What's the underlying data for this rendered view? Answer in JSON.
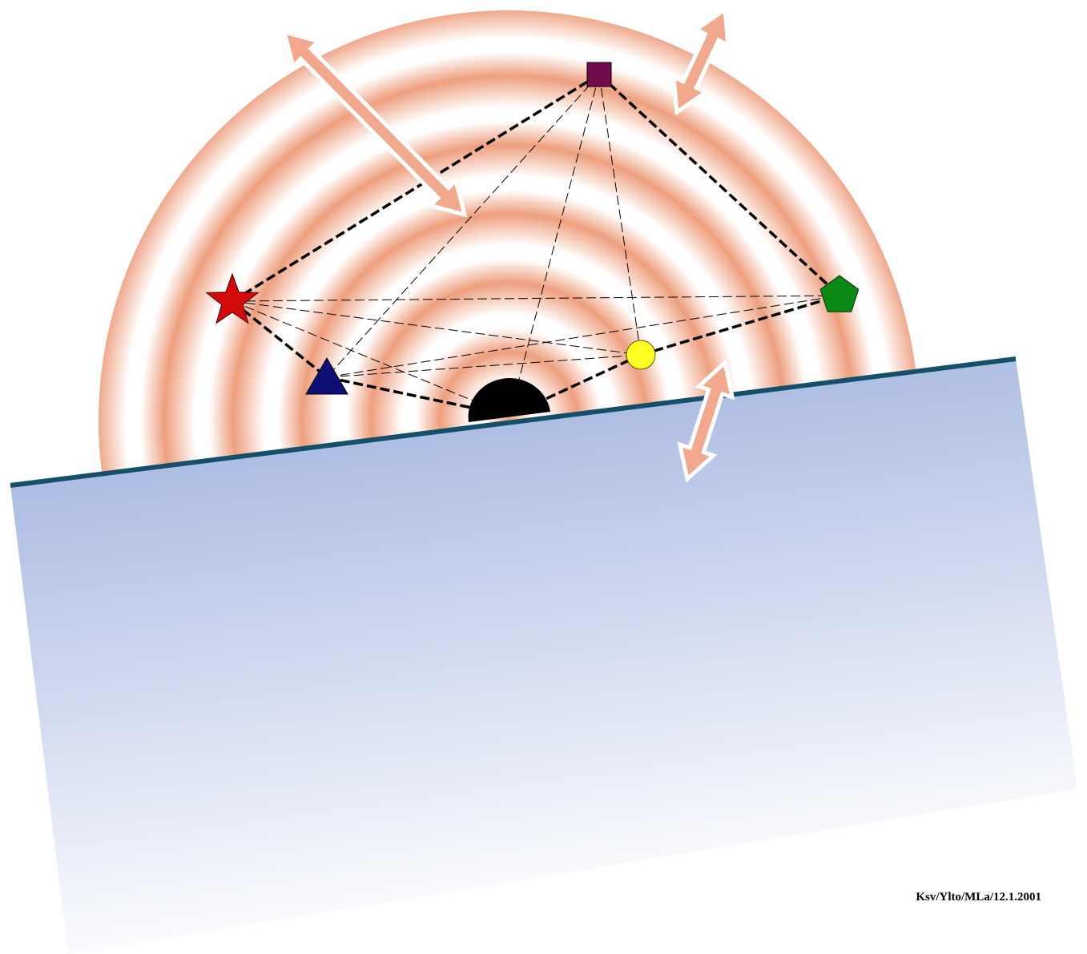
{
  "diagram": {
    "credit": "Ksv/Ylto/MLa/12.1.2001",
    "colors": {
      "ring_band": "#ee9f7e",
      "ring_light": "#ffffff",
      "ground_top": "#98acdc",
      "ground_bottom": "#ffffff",
      "ground_edge": "#15506a",
      "arrow_fill": "#f2a88c",
      "arrow_outline": "#ffffff",
      "center_body": "#000000",
      "connector_line": "#000000"
    },
    "nodes": [
      {
        "id": "square",
        "shape": "square",
        "color": "#720b4c"
      },
      {
        "id": "star",
        "shape": "star",
        "color": "#d10a0a"
      },
      {
        "id": "pentagon",
        "shape": "pentagon",
        "color": "#0a8a14"
      },
      {
        "id": "circle",
        "shape": "circle",
        "color": "#ffff22"
      },
      {
        "id": "triangle",
        "shape": "triangle",
        "color": "#0e1076"
      },
      {
        "id": "center",
        "shape": "half-disc",
        "color": "#000000"
      }
    ],
    "links_primary": [
      [
        "square",
        "star"
      ],
      [
        "square",
        "pentagon"
      ],
      [
        "star",
        "triangle"
      ],
      [
        "triangle",
        "center"
      ],
      [
        "center",
        "circle"
      ],
      [
        "circle",
        "pentagon"
      ]
    ],
    "links_secondary": [
      [
        "square",
        "triangle"
      ],
      [
        "square",
        "center"
      ],
      [
        "square",
        "circle"
      ],
      [
        "star",
        "pentagon"
      ],
      [
        "star",
        "circle"
      ],
      [
        "star",
        "center"
      ],
      [
        "triangle",
        "pentagon"
      ],
      [
        "triangle",
        "circle"
      ]
    ],
    "arrows": [
      {
        "id": "arrow-upper-left",
        "type": "double"
      },
      {
        "id": "arrow-upper-right",
        "type": "double"
      },
      {
        "id": "arrow-ground",
        "type": "double"
      }
    ]
  }
}
